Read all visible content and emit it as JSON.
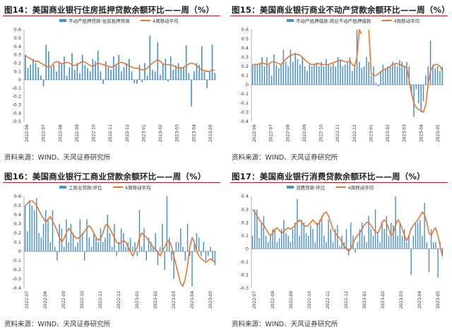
{
  "colors": {
    "bar": "#4a90d0",
    "line": "#e8762c",
    "title_rule": "#c61f1f",
    "axis": "#8c8c8c"
  },
  "x_tick_labels": [
    "2022-06",
    "2022-07",
    "2022-08",
    "2022-09",
    "2022-10",
    "2022-11",
    "2022-12",
    "2023-01",
    "2023-02",
    "2023-03",
    "2023-04",
    "2023-05"
  ],
  "panels": [
    {
      "title": "图14：美国商业银行住房抵押贷款余额环比——周（%）",
      "source": "资料来源：WIND、天风证券研究所",
      "legend_bar": "不动产抵押贷款:住房抵押贷款",
      "legend_line": "4周移动平均"
    },
    {
      "title": "图15：美国商业银行商业不动产贷款余额环比——周（%）",
      "source": "资料来源：WIND、天风证券研究所",
      "legend_bar": "不动产抵押借款:商业不动产抵押借款",
      "legend_line": "4周移动平均"
    },
    {
      "title": "图16：美国商业银行工商业贷款余额环比——周（%）",
      "source": "资料来源：WIND、天风证券研究所",
      "legend_bar": "工商业贷款:环比",
      "legend_line": "4周移动平均"
    },
    {
      "title": "图17：美国商业银行消费贷款余额环比——周（%）",
      "source": "资料来源：WIND、天风证券研究所",
      "legend_bar": "消费贷款:环比",
      "legend_line": "4周移动平均"
    }
  ],
  "chart_data": [
    {
      "type": "bar",
      "title": "图14：美国商业银行住房抵押贷款余额环比——周（%）",
      "ylim": [
        -0.5,
        0.6
      ],
      "yticks": [
        "0.6",
        "0.5",
        "0.4",
        "0.3",
        "0.2",
        "0.1",
        "0",
        "-0.1",
        "-0.2",
        "-0.3",
        "-0.4",
        "-0.5"
      ],
      "x_range": [
        "2022-06",
        "2023-05"
      ],
      "legend_position": "top",
      "grid": false,
      "series": [
        {
          "name": "不动产抵押贷款:住房抵押贷款",
          "type": "bar",
          "values": [
            0.3,
            0.14,
            0.18,
            0.25,
            0.2,
            0.15,
            0.05,
            -0.08,
            0.42,
            0.34,
            0.15,
            0.18,
            0.1,
            0.22,
            0.2,
            0.28,
            0.05,
            0.15,
            0.32,
            0.12,
            0.2,
            0.08,
            0.3,
            0.18,
            0.14,
            0.1,
            0.25,
            0.22,
            0.35,
            0.1,
            -0.05,
            0.22,
            0.15,
            0.12,
            0.28,
            0.18,
            0.3,
            0.1,
            0.15,
            0.2,
            0.25,
            0.1,
            -0.04,
            -0.05,
            0.18,
            -0.03,
            0.2,
            0.05,
            0.53,
            0.12,
            0.1,
            0.45,
            0.06,
            0.2,
            0.25,
            -0.02,
            0.28,
            0.12,
            0.17,
            0.2,
            0.15,
            0.15,
            0.41,
            0.08,
            -0.32,
            0.1,
            0.2,
            0.18,
            0.4,
            0.1,
            -0.1,
            0.1,
            0.42,
            0.08
          ]
        },
        {
          "name": "4周移动平均",
          "type": "line",
          "values": [
            0.29,
            0.27,
            0.25,
            0.23,
            0.22,
            0.22,
            0.2,
            0.18,
            0.16,
            0.15,
            0.16,
            0.2,
            0.22,
            0.21,
            0.19,
            0.2,
            0.21,
            0.2,
            0.18,
            0.17,
            0.18,
            0.2,
            0.22,
            0.21,
            0.19,
            0.17,
            0.16,
            0.18,
            0.2,
            0.19,
            0.18,
            0.17,
            0.16,
            0.15,
            0.16,
            0.18,
            0.2,
            0.21,
            0.2,
            0.18,
            0.17,
            0.15,
            0.14,
            0.14,
            0.13,
            0.12,
            0.12,
            0.14,
            0.17,
            0.2,
            0.22,
            0.24,
            0.22,
            0.19,
            0.18,
            0.18,
            0.18,
            0.17,
            0.15,
            0.14,
            0.14,
            0.15,
            0.17,
            0.19,
            0.2,
            0.19,
            0.17,
            0.14,
            0.12,
            0.11,
            0.1,
            0.1,
            0.12,
            0.11
          ]
        }
      ]
    },
    {
      "type": "bar",
      "title": "图15：美国商业银行商业不动产贷款余额环比——周（%）",
      "ylim": [
        -0.4,
        0.6
      ],
      "yticks": [
        "0.6",
        "0.5",
        "0.4",
        "0.3",
        "0.2",
        "0.1",
        "0",
        "-0.1",
        "-0.2",
        "-0.3",
        "-0.4"
      ],
      "x_range": [
        "2022-06",
        "2023-05"
      ],
      "legend_position": "top",
      "grid": false,
      "series": [
        {
          "name": "不动产抵押借款:商业不动产抵押借款",
          "type": "bar",
          "values": [
            0.22,
            0.22,
            0.22,
            0.23,
            0.3,
            0.2,
            0.3,
            0.22,
            0.1,
            0.33,
            0.22,
            0.18,
            0.22,
            0.38,
            0.25,
            0.2,
            0.38,
            0.25,
            0.35,
            0.28,
            0.22,
            0.3,
            0.2,
            0.15,
            0.22,
            0.2,
            0.22,
            0.24,
            0.2,
            0.25,
            0.2,
            0.28,
            0.22,
            0.2,
            0.23,
            0.2,
            0.3,
            0.27,
            0.2,
            0.22,
            0.25,
            0.3,
            0.15,
            0.2,
            0.6,
            0.25,
            0.18,
            0.2,
            0.3,
            0.25,
            0.1,
            0.2,
            0.02,
            -0.02,
            0.15,
            0.22,
            0.18,
            0.2,
            0.2,
            0.25,
            0.22,
            0.2,
            0.27,
            0.25,
            0.2,
            0.25,
            0.2,
            -0.1,
            -0.35,
            -0.05,
            -0.2,
            -0.3,
            -0.18,
            0.1,
            0.2,
            0.48,
            0.22,
            0.18,
            0.2,
            0.15,
            0.2
          ]
        },
        {
          "name": "4周移动平均",
          "type": "line",
          "values": [
            0.22,
            0.22,
            0.22,
            0.23,
            0.24,
            0.23,
            0.22,
            0.23,
            0.25,
            0.25,
            0.24,
            0.23,
            0.22,
            0.25,
            0.28,
            0.3,
            0.32,
            0.33,
            0.33,
            0.33,
            0.32,
            0.3,
            0.27,
            0.25,
            0.23,
            0.22,
            0.22,
            0.23,
            0.23,
            0.22,
            0.22,
            0.22,
            0.22,
            0.23,
            0.24,
            0.25,
            0.26,
            0.27,
            0.26,
            0.25,
            0.25,
            0.26,
            0.22,
            0.2,
            0.3,
            0.6,
            0.55,
            null,
            null,
            0.6,
            0.12,
            0.1,
            0.1,
            0.12,
            0.14,
            0.16,
            0.17,
            0.18,
            0.2,
            0.22,
            0.23,
            0.23,
            0.22,
            0.21,
            0.2,
            0.18,
            0.05,
            -0.1,
            -0.2,
            -0.25,
            -0.27,
            -0.28,
            -0.3,
            -0.22,
            0.0,
            0.15,
            0.2,
            0.22,
            0.22,
            0.2,
            0.15
          ]
        }
      ]
    },
    {
      "type": "bar",
      "title": "图16：美国商业银行工商业贷款余额环比——周（%）",
      "ylim": [
        -0.4,
        0.6
      ],
      "yticks": [
        "0.6",
        "0.5",
        "0.4",
        "0.3",
        "0.2",
        "0.1",
        "0",
        "-0.1",
        "-0.2",
        "-0.3",
        "-0.4"
      ],
      "x_range": [
        "2022-07",
        "2023-05"
      ],
      "legend_position": "top",
      "grid": false,
      "series": [
        {
          "name": "工商业贷款:环比",
          "type": "bar",
          "values": [
            0.5,
            0.22,
            0.55,
            0.5,
            0.45,
            0.58,
            0.2,
            0.15,
            0.3,
            0.45,
            0.35,
            0.1,
            0.45,
            0.05,
            -0.1,
            0.3,
            0.25,
            0.05,
            0.35,
            0.1,
            0.3,
            0.2,
            0.05,
            0.1,
            0.35,
            0.2,
            -0.1,
            0.35,
            0.15,
            0.05,
            0.2,
            0.15,
            0.1,
            0.25,
            0.1,
            0.15,
            0.4,
            0.2,
            0.05,
            0.3,
            -0.05,
            0.1,
            0.25,
            0.2,
            0.05,
            0.1,
            0.15,
            0.05,
            0.1,
            -0.05,
            0.45,
            0.05,
            0.25,
            -0.1,
            0.15,
            0.1,
            0.05,
            0.2,
            -0.15,
            0.05,
            0.3,
            -0.2,
            0.6,
            0.15,
            -0.1,
            -0.3,
            0.1,
            0.1,
            0.25,
            0.05,
            -0.1,
            0.3,
            -0.05,
            -0.38,
            0.1,
            0.2,
            0.15,
            -0.05,
            0.1,
            -0.1,
            -0.05,
            0.05,
            -0.1,
            -0.15
          ]
        },
        {
          "name": "4周移动平均",
          "type": "line",
          "values": [
            0.5,
            0.52,
            0.55,
            0.55,
            0.53,
            0.5,
            0.45,
            0.4,
            0.36,
            0.32,
            0.35,
            0.38,
            0.33,
            0.28,
            0.22,
            0.15,
            0.1,
            0.14,
            0.2,
            0.25,
            0.22,
            0.18,
            0.15,
            0.14,
            0.16,
            0.18,
            0.22,
            0.25,
            0.28,
            0.25,
            0.2,
            0.15,
            0.12,
            0.14,
            0.2,
            0.28,
            0.3,
            0.25,
            0.2,
            0.15,
            0.1,
            0.08,
            0.1,
            0.12,
            0.1,
            0.05,
            0.0,
            -0.05,
            0.0,
            0.05,
            0.15,
            0.2,
            0.18,
            0.15,
            0.12,
            0.08,
            0.05,
            0.02,
            0.0,
            -0.05,
            0.0,
            0.05,
            0.1,
            0.12,
            0.05,
            -0.05,
            -0.15,
            -0.25,
            -0.35,
            -0.38,
            -0.3,
            -0.15,
            0.05,
            0.15,
            0.1,
            0.0,
            -0.05,
            -0.08,
            -0.1,
            -0.12,
            -0.1,
            -0.08,
            -0.1,
            -0.12
          ]
        }
      ]
    },
    {
      "type": "bar",
      "title": "图17：美国商业银行消费贷款余额环比——周（%）",
      "ylim": [
        -0.3,
        0.4
      ],
      "yticks": [
        "0.4",
        "0.3",
        "0.2",
        "0.1",
        "0",
        "-0.1",
        "-0.2",
        "-0.3"
      ],
      "x_range": [
        "2022-07",
        "2023-05"
      ],
      "legend_position": "top",
      "grid": false,
      "series": [
        {
          "name": "消费贷款:环比",
          "type": "bar",
          "values": [
            0.1,
            0.3,
            0.3,
            0.08,
            0.2,
            0.25,
            0.1,
            0.05,
            0.1,
            0.15,
            0.15,
            0.05,
            0.08,
            0.15,
            0.22,
            0.12,
            0.1,
            0.05,
            0.15,
            0.2,
            0.38,
            0.1,
            0.22,
            0.2,
            0.12,
            0.1,
            0.18,
            0.15,
            0.05,
            0.2,
            0.22,
            0.25,
            0.1,
            0.05,
            0.22,
            0.15,
            0.05,
            0.15,
            0.18,
            0.02,
            0.1,
            0.05,
            0.15,
            -0.05,
            0.2,
            0.1,
            -0.03,
            0.05,
            0.15,
            0.2,
            0.1,
            0.05,
            0.25,
            0.15,
            0.1,
            0.3,
            0.12,
            0.05,
            0.2,
            0.15,
            0.25,
            0.1,
            0.2,
            0.18,
            0.4,
            0.1,
            0.2,
            0.1,
            0.15,
            0.05,
            0.1,
            -0.2,
            0.1,
            0.2,
            0.2,
            0.22,
            0.1,
            0.35,
            0.05,
            -0.18,
            0.15,
            0.05,
            0.05,
            -0.22,
            0.05,
            -0.05
          ]
        },
        {
          "name": "4周移动平均",
          "type": "line",
          "values": [
            0.3,
            0.28,
            0.25,
            0.22,
            0.2,
            0.18,
            0.15,
            0.12,
            0.1,
            0.12,
            0.15,
            0.16,
            0.14,
            0.12,
            0.13,
            0.15,
            0.16,
            0.15,
            0.16,
            0.18,
            0.2,
            0.22,
            0.2,
            0.18,
            0.17,
            0.18,
            0.2,
            0.22,
            0.2,
            0.18,
            0.2,
            0.24,
            0.27,
            0.28,
            0.25,
            0.2,
            0.15,
            0.12,
            0.1,
            0.08,
            0.05,
            0.02,
            0.0,
            -0.02,
            0.0,
            0.04,
            0.08,
            0.1,
            0.12,
            0.15,
            0.18,
            0.2,
            0.2,
            0.18,
            0.15,
            0.13,
            0.12,
            0.15,
            0.2,
            0.22,
            0.2,
            0.15,
            0.1,
            0.12,
            0.18,
            0.22,
            0.2,
            0.15,
            0.1,
            0.06,
            0.1,
            0.15,
            0.18,
            0.2,
            0.22,
            0.25,
            0.28,
            0.26,
            0.2,
            0.12,
            0.1,
            0.14,
            0.16,
            0.1,
            0.02,
            -0.06
          ]
        }
      ]
    }
  ]
}
